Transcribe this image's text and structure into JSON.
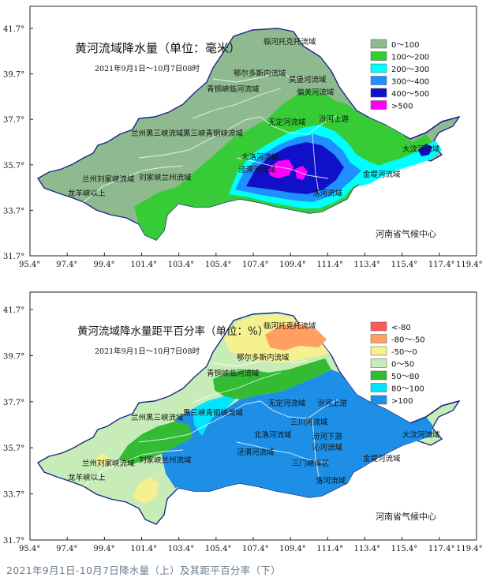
{
  "top_map": {
    "title": "黄河流域降水量（单位：毫米）",
    "period": "2021年9月1日～10月7日08时",
    "credit": "河南省气候中心",
    "lat_labels": [
      "41.7°",
      "39.7°",
      "37.7°",
      "35.7°",
      "33.7°",
      "31.7°"
    ],
    "lon_labels": [
      "95.4°",
      "97.4°",
      "99.4°",
      "101.4°",
      "103.4°",
      "105.4°",
      "107.4°",
      "109.4°",
      "111.4°",
      "113.4°",
      "115.4°",
      "117.4°",
      "119.4°"
    ],
    "legend": [
      {
        "label": "0～100",
        "color": "#8fba8f"
      },
      {
        "label": "100～200",
        "color": "#33cc33"
      },
      {
        "label": "200～300",
        "color": "#00ffff"
      },
      {
        "label": "300～400",
        "color": "#1e90ff"
      },
      {
        "label": "400～500",
        "color": "#1010c8"
      },
      {
        "label": ">500",
        "color": "#ff00ff"
      }
    ],
    "regions": [
      "临河托克托流域",
      "鄂尔多斯内流域",
      "青铜峡临河流域",
      "吴堡河流域",
      "偏关河流域",
      "兰州黑三峡流域",
      "黑三峡青铜峡流域",
      "无定河流域",
      "汾河上游",
      "北洛河流域",
      "泾渭河流域",
      "兰州刘家峡流域",
      "刘家峡兰州流域",
      "龙羊峡以上",
      "洛河流域",
      "金堤河流域",
      "大汶河流域"
    ]
  },
  "bottom_map": {
    "title": "黄河流域降水量距平百分率（单位：%）",
    "period": "2021年9月1日～10月7日08时",
    "credit": "河南省气候中心",
    "lat_labels": [
      "41.7°",
      "39.7°",
      "37.7°",
      "35.7°",
      "33.7°",
      "31.7°"
    ],
    "lon_labels": [
      "95.4°",
      "97.4°",
      "99.4°",
      "101.4°",
      "103.4°",
      "105.4°",
      "107.4°",
      "109.4°",
      "111.4°",
      "113.4°",
      "115.4°",
      "117.4°",
      "119.4°"
    ],
    "legend": [
      {
        "label": "<-80",
        "color": "#ff5a5a"
      },
      {
        "label": "-80～-50",
        "color": "#ffa060"
      },
      {
        "label": "-50～0",
        "color": "#f5f090"
      },
      {
        "label": "0～50",
        "color": "#c8ecb8"
      },
      {
        "label": "50～80",
        "color": "#33bb33"
      },
      {
        "label": "80～100",
        "color": "#00e5ff"
      },
      {
        "label": ">100",
        "color": "#1e8fe6"
      }
    ],
    "regions": [
      "临河托克托流域",
      "鄂尔多斯内流域",
      "青铜峡临河流域",
      "兰州黑三峡流域",
      "黑三峡青铜峡流域",
      "无定河流域",
      "汾河上游",
      "三川河流域",
      "北洛河流域",
      "汾河下游",
      "沁河流域",
      "泾渭河流域",
      "三门峡库区",
      "洛河流域",
      "金堤河流域",
      "大汶河流域",
      "兰州刘家峡流域",
      "刘家峡兰州流域",
      "龙羊峡以上"
    ]
  },
  "caption": "2021年9月1日-10月7日降水量（上）及其距平百分率（下）"
}
